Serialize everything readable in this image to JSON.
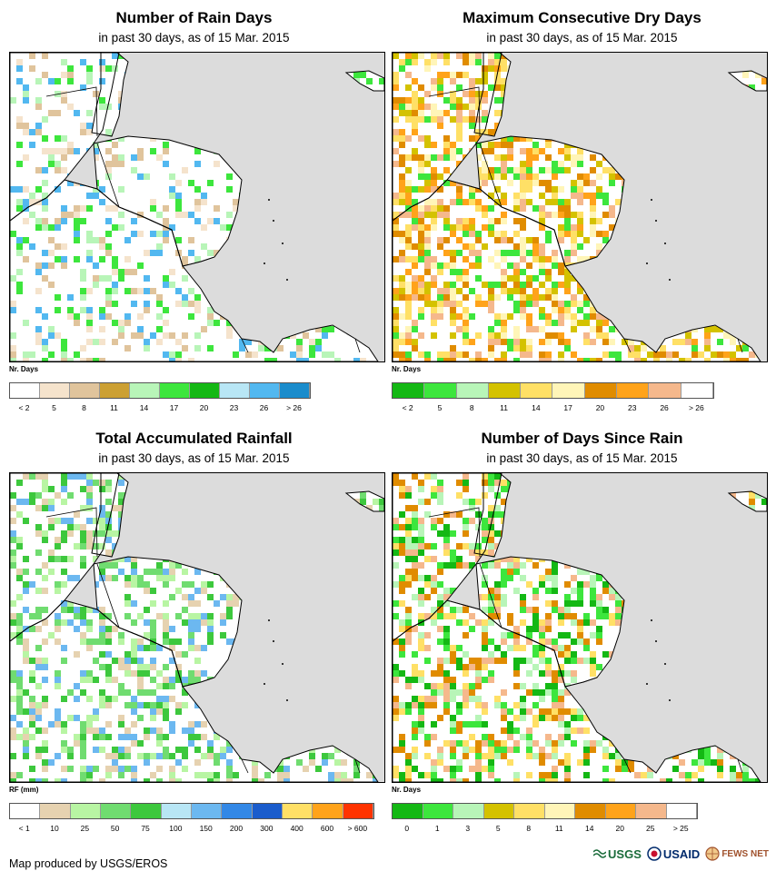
{
  "footer": {
    "credit": "Map produced by USGS/EROS",
    "logos": [
      "USGS",
      "USAID",
      "FEWS NET"
    ]
  },
  "panels": [
    {
      "title": "Number of Rain Days",
      "subtitle": "in past 30 days, as of 15 Mar. 2015",
      "legend_label": "Nr. Days",
      "colors": [
        "#ffffff",
        "#f5e3cc",
        "#e0c49c",
        "#cca033",
        "#b8f5b8",
        "#3de63d",
        "#14b814",
        "#b8e6f5",
        "#52b8f0",
        "#1a8ccc"
      ],
      "ticks": [
        "< 2",
        "5",
        "8",
        "11",
        "14",
        "17",
        "20",
        "23",
        "26",
        "> 26"
      ],
      "palette": [
        "#f5e3cc",
        "#e0c49c",
        "#b8f5b8",
        "#3de63d",
        "#52b8f0"
      ],
      "density": 0.28
    },
    {
      "title": "Maximum Consecutive Dry Days",
      "subtitle": "in past 30 days, as of 15 Mar. 2015",
      "legend_label": "Nr. Days",
      "colors": [
        "#14b814",
        "#3de63d",
        "#b8f5b8",
        "#d4c200",
        "#ffe066",
        "#fff5b8",
        "#e08c00",
        "#ffa31a",
        "#f5b88c",
        "#ffffff"
      ],
      "ticks": [
        "< 2",
        "5",
        "8",
        "11",
        "14",
        "17",
        "20",
        "23",
        "26",
        "> 26"
      ],
      "palette": [
        "#e08c00",
        "#ffa31a",
        "#ffe066",
        "#fff5b8",
        "#f5b88c",
        "#d4c200",
        "#3de63d"
      ],
      "density": 0.55
    },
    {
      "title": "Total Accumulated Rainfall",
      "subtitle": "in past 30 days, as of 15 Mar. 2015",
      "legend_label": "RF (mm)",
      "colors": [
        "#ffffff",
        "#e6d2b0",
        "#b8f5a3",
        "#70dc70",
        "#3dc83d",
        "#b8e6f5",
        "#6cb8f0",
        "#3388e6",
        "#1a5ccc",
        "#ffe066",
        "#ffa31a",
        "#ff3300"
      ],
      "ticks": [
        "< 1",
        "10",
        "25",
        "50",
        "75",
        "100",
        "150",
        "200",
        "300",
        "400",
        "600",
        "> 600"
      ],
      "palette": [
        "#e6d2b0",
        "#b8f5a3",
        "#70dc70",
        "#3dc83d",
        "#6cb8f0"
      ],
      "density": 0.42
    },
    {
      "title": "Number of Days Since Rain",
      "subtitle": "in past 30 days, as of 15 Mar. 2015",
      "legend_label": "Nr. Days",
      "colors": [
        "#14b814",
        "#3de63d",
        "#b8f5b8",
        "#d4c200",
        "#ffe066",
        "#fff5b8",
        "#e08c00",
        "#ffa31a",
        "#f5b88c",
        "#ffffff"
      ],
      "ticks": [
        "0",
        "1",
        "3",
        "5",
        "8",
        "11",
        "14",
        "20",
        "25",
        "> 25"
      ],
      "palette": [
        "#14b814",
        "#3de63d",
        "#b8f5b8",
        "#f5b88c",
        "#e08c00",
        "#ffe066"
      ],
      "density": 0.5
    }
  ]
}
